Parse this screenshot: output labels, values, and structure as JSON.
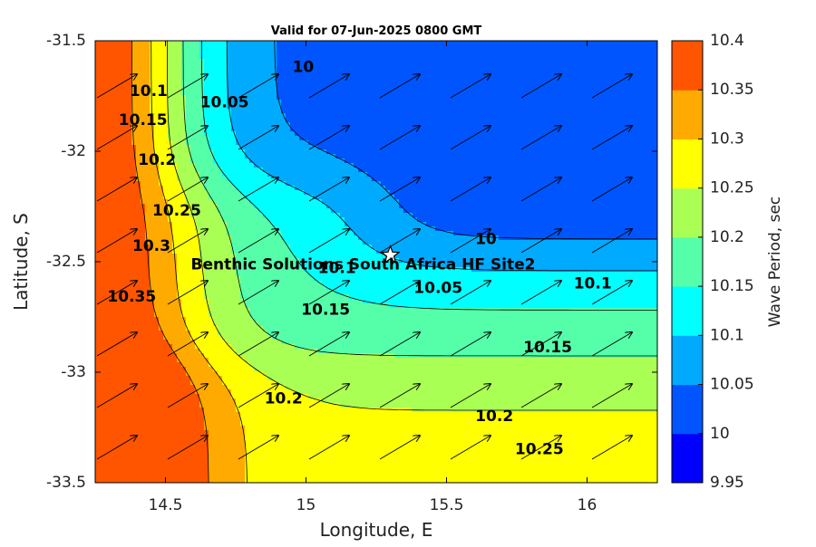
{
  "chart_data": {
    "type": "heatmap",
    "subtype": "filled contour map with vector arrows",
    "title": "Valid for 07-Jun-2025 0800 GMT",
    "xlabel": "Longitude, E",
    "ylabel": "Latitude, S",
    "xlim": [
      14.25,
      16.25
    ],
    "ylim": [
      -33.5,
      -31.5
    ],
    "x_ticks": [
      14.5,
      15,
      15.5,
      16
    ],
    "x_tick_labels": [
      "14.5",
      "15",
      "15.5",
      "16"
    ],
    "y_ticks": [
      -31.5,
      -32,
      -32.5,
      -33,
      -33.5
    ],
    "y_tick_labels": [
      "-31.5",
      "-32",
      "-32.5",
      "-33",
      "-33.5"
    ],
    "colorbar": {
      "label": "Wave Period, sec",
      "levels": [
        9.95,
        10.0,
        10.05,
        10.1,
        10.15,
        10.2,
        10.25,
        10.3,
        10.35,
        10.4
      ],
      "tick_labels": [
        "9.95",
        "10",
        "10.05",
        "10.1",
        "10.15",
        "10.2",
        "10.25",
        "10.3",
        "10.35",
        "10.4"
      ],
      "colors": [
        "#0000ff",
        "#0055ff",
        "#00aaff",
        "#00ffff",
        "#55ffaa",
        "#aaff55",
        "#ffff00",
        "#ffaa00",
        "#ff5500"
      ]
    },
    "contour_labels": [
      {
        "text": "10",
        "lon": 14.99,
        "lat": -31.62
      },
      {
        "text": "10.05",
        "lon": 14.71,
        "lat": -31.78
      },
      {
        "text": "10.1",
        "lon": 14.44,
        "lat": -31.73
      },
      {
        "text": "10.15",
        "lon": 14.42,
        "lat": -31.86
      },
      {
        "text": "10.2",
        "lon": 14.47,
        "lat": -32.04
      },
      {
        "text": "10.25",
        "lon": 14.54,
        "lat": -32.27
      },
      {
        "text": "10.3",
        "lon": 14.45,
        "lat": -32.43
      },
      {
        "text": "10.35",
        "lon": 14.38,
        "lat": -32.66
      },
      {
        "text": "10.2",
        "lon": 14.92,
        "lat": -33.12
      },
      {
        "text": "10.15",
        "lon": 15.07,
        "lat": -32.72
      },
      {
        "text": "10.1",
        "lon": 15.11,
        "lat": -32.53
      },
      {
        "text": "10.05",
        "lon": 15.47,
        "lat": -32.62
      },
      {
        "text": "10",
        "lon": 15.64,
        "lat": -32.4
      },
      {
        "text": "10.1",
        "lon": 16.02,
        "lat": -32.6
      },
      {
        "text": "10.15",
        "lon": 15.86,
        "lat": -32.89
      },
      {
        "text": "10.2",
        "lon": 15.67,
        "lat": -33.2
      },
      {
        "text": "10.25",
        "lon": 15.83,
        "lat": -33.35
      }
    ],
    "site": {
      "name": "Benthic Solutions South Africa HF Site2",
      "lon": 15.3,
      "lat": -32.47
    },
    "vectors": "uniform field of arrows pointing toward the northeast across the map"
  }
}
